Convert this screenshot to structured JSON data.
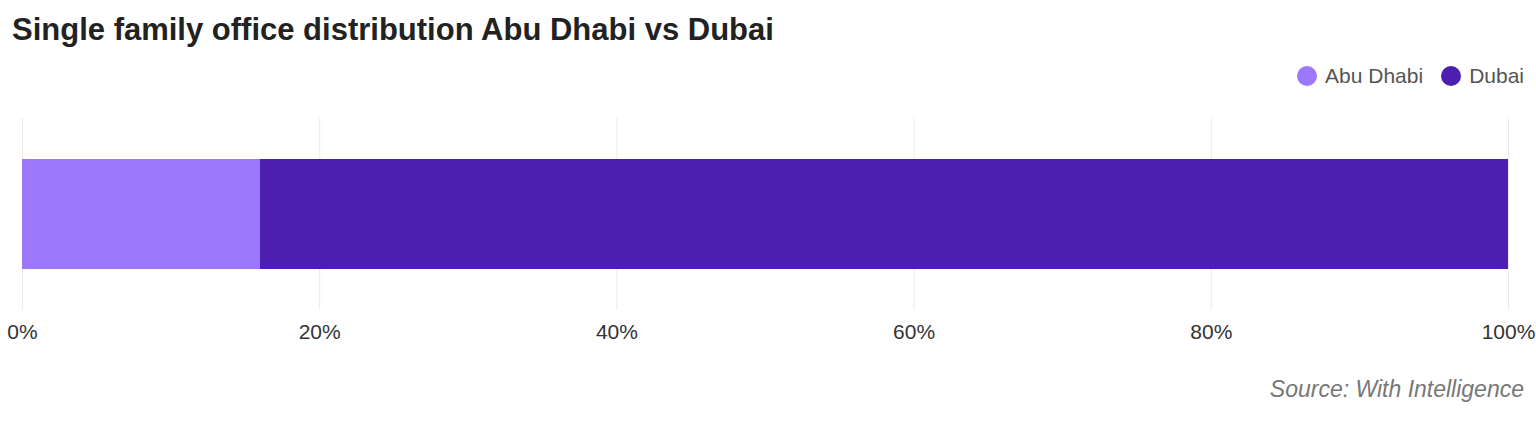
{
  "chart_data": {
    "type": "bar",
    "title": "Single family office distribution Abu Dhabi vs Dubai",
    "orientation": "horizontal",
    "stacked": true,
    "grid": true,
    "legend": "top-right",
    "tick_labels": "x",
    "categories": [
      null
    ],
    "series": [
      {
        "name": "Abu Dhabi",
        "color": "#9c78fc",
        "values": [
          16
        ]
      },
      {
        "name": "Dubai",
        "color": "#4c1fb1",
        "values": [
          84
        ]
      }
    ],
    "xlim": [
      0,
      100
    ],
    "xticks": [
      {
        "value": 0,
        "label": "0%"
      },
      {
        "value": 20,
        "label": "20%"
      },
      {
        "value": 40,
        "label": "40%"
      },
      {
        "value": 60,
        "label": "60%"
      },
      {
        "value": 80,
        "label": "80%"
      },
      {
        "value": 100,
        "label": "100%"
      }
    ],
    "caption": "Source: With Intelligence"
  }
}
